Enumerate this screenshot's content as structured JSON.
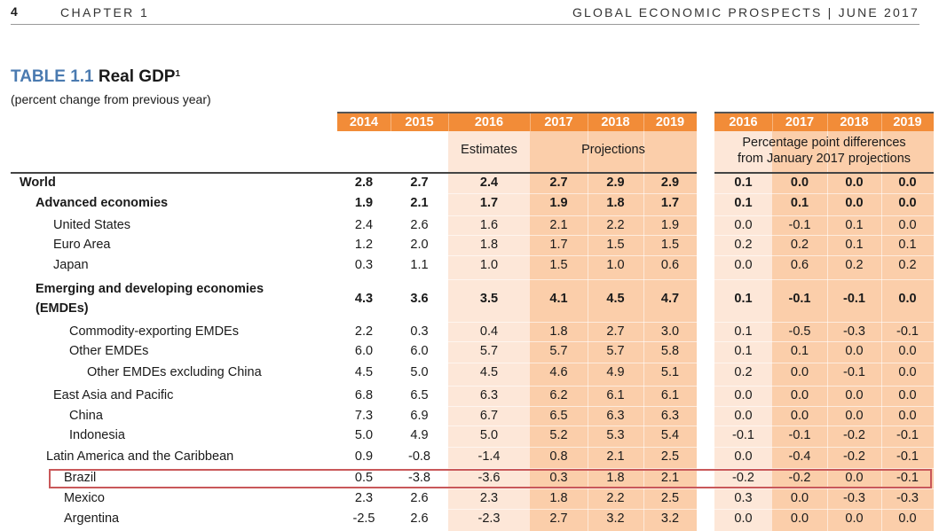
{
  "header": {
    "page_number": "4",
    "chapter": "CHAPTER 1",
    "running_head": "GLOBAL ECONOMIC PROSPECTS | JUNE 2017"
  },
  "table": {
    "number": "TABLE 1.1",
    "title": "Real GDP",
    "footnote_mark": "1",
    "subtitle": "(percent change from previous year)",
    "years": [
      "2014",
      "2015",
      "2016",
      "2017",
      "2018",
      "2019"
    ],
    "diff_years": [
      "2016",
      "2017",
      "2018",
      "2019"
    ],
    "estimates_label": "Estimates",
    "projections_label": "Projections",
    "diff_label_line1": "Percentage point differences",
    "diff_label_line2": "from January 2017 projections",
    "colors": {
      "header_orange": "#f28c38",
      "estimates_fill": "#fde7d8",
      "projections_fill": "#fbceaa",
      "highlight_border": "#c9585a"
    },
    "rows": [
      {
        "label": "World",
        "bold": true,
        "values": [
          "2.8",
          "2.7",
          "2.4",
          "2.7",
          "2.9",
          "2.9"
        ],
        "diffs": [
          "0.1",
          "0.0",
          "0.0",
          "0.0"
        ]
      },
      {
        "label": "Advanced economies",
        "bold": true,
        "values": [
          "1.9",
          "2.1",
          "1.7",
          "1.9",
          "1.8",
          "1.7"
        ],
        "diffs": [
          "0.1",
          "0.1",
          "0.0",
          "0.0"
        ]
      },
      {
        "label": "United States",
        "bold": false,
        "values": [
          "2.4",
          "2.6",
          "1.6",
          "2.1",
          "2.2",
          "1.9"
        ],
        "diffs": [
          "0.0",
          "-0.1",
          "0.1",
          "0.0"
        ]
      },
      {
        "label": "Euro Area",
        "bold": false,
        "values": [
          "1.2",
          "2.0",
          "1.8",
          "1.7",
          "1.5",
          "1.5"
        ],
        "diffs": [
          "0.2",
          "0.2",
          "0.1",
          "0.1"
        ]
      },
      {
        "label": "Japan",
        "bold": false,
        "values": [
          "0.3",
          "1.1",
          "1.0",
          "1.5",
          "1.0",
          "0.6"
        ],
        "diffs": [
          "0.0",
          "0.6",
          "0.2",
          "0.2"
        ]
      },
      {
        "label": "Emerging and developing economies",
        "label2": "(EMDEs)",
        "bold": true,
        "values": [
          "4.3",
          "3.6",
          "3.5",
          "4.1",
          "4.5",
          "4.7"
        ],
        "diffs": [
          "0.1",
          "-0.1",
          "-0.1",
          "0.0"
        ]
      },
      {
        "label": "Commodity-exporting EMDEs",
        "bold": false,
        "values": [
          "2.2",
          "0.3",
          "0.4",
          "1.8",
          "2.7",
          "3.0"
        ],
        "diffs": [
          "0.1",
          "-0.5",
          "-0.3",
          "-0.1"
        ]
      },
      {
        "label": "Other EMDEs",
        "bold": false,
        "values": [
          "6.0",
          "6.0",
          "5.7",
          "5.7",
          "5.7",
          "5.8"
        ],
        "diffs": [
          "0.1",
          "0.1",
          "0.0",
          "0.0"
        ]
      },
      {
        "label": "Other EMDEs excluding China",
        "bold": false,
        "values": [
          "4.5",
          "5.0",
          "4.5",
          "4.6",
          "4.9",
          "5.1"
        ],
        "diffs": [
          "0.2",
          "0.0",
          "-0.1",
          "0.0"
        ]
      },
      {
        "label": "East Asia and Pacific",
        "bold": false,
        "values": [
          "6.8",
          "6.5",
          "6.3",
          "6.2",
          "6.1",
          "6.1"
        ],
        "diffs": [
          "0.0",
          "0.0",
          "0.0",
          "0.0"
        ]
      },
      {
        "label": "China",
        "bold": false,
        "values": [
          "7.3",
          "6.9",
          "6.7",
          "6.5",
          "6.3",
          "6.3"
        ],
        "diffs": [
          "0.0",
          "0.0",
          "0.0",
          "0.0"
        ]
      },
      {
        "label": "Indonesia",
        "bold": false,
        "values": [
          "5.0",
          "4.9",
          "5.0",
          "5.2",
          "5.3",
          "5.4"
        ],
        "diffs": [
          "-0.1",
          "-0.1",
          "-0.2",
          "-0.1"
        ]
      },
      {
        "label": "Latin America and the Caribbean",
        "bold": false,
        "values": [
          "0.9",
          "-0.8",
          "-1.4",
          "0.8",
          "2.1",
          "2.5"
        ],
        "diffs": [
          "0.0",
          "-0.4",
          "-0.2",
          "-0.1"
        ]
      },
      {
        "label": "Brazil",
        "bold": false,
        "values": [
          "0.5",
          "-3.8",
          "-3.6",
          "0.3",
          "1.8",
          "2.1"
        ],
        "diffs": [
          "-0.2",
          "-0.2",
          "0.0",
          "-0.1"
        ]
      },
      {
        "label": "Mexico",
        "bold": false,
        "values": [
          "2.3",
          "2.6",
          "2.3",
          "1.8",
          "2.2",
          "2.5"
        ],
        "diffs": [
          "0.3",
          "0.0",
          "-0.3",
          "-0.3"
        ]
      },
      {
        "label": "Argentina",
        "bold": false,
        "values": [
          "-2.5",
          "2.6",
          "-2.3",
          "2.7",
          "3.2",
          "3.2"
        ],
        "diffs": [
          "0.0",
          "0.0",
          "0.0",
          "0.0"
        ]
      }
    ]
  }
}
